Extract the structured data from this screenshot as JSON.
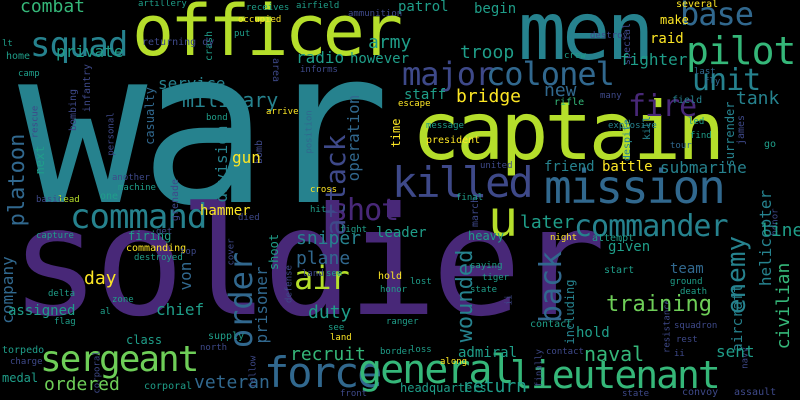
{
  "palette": {
    "background": "#000000",
    "purple": "#482878",
    "indigo": "#3e4989",
    "blue": "#31688e",
    "teal": "#26828e",
    "green_teal": "#1f9e89",
    "green": "#35b779",
    "light_green": "#6ece58",
    "lime": "#b5de2b",
    "yellow": "#fde725"
  },
  "words": [
    {
      "text": "war",
      "color": "#26828e"
    },
    {
      "text": "soldier",
      "color": "#482878"
    },
    {
      "text": "men",
      "color": "#26828e"
    },
    {
      "text": "officer",
      "color": "#b5de2b"
    },
    {
      "text": "captain",
      "color": "#b5de2b"
    },
    {
      "text": "mission",
      "color": "#31688e"
    },
    {
      "text": "killed",
      "color": "#3e4989"
    },
    {
      "text": "command",
      "color": "#26828e"
    },
    {
      "text": "commander",
      "color": "#26828e"
    },
    {
      "text": "force",
      "color": "#31688e"
    },
    {
      "text": "general",
      "color": "#35b779"
    },
    {
      "text": "lieutenant",
      "color": "#35b779"
    },
    {
      "text": "sergeant",
      "color": "#6ece58"
    },
    {
      "text": "squad",
      "color": "#26828e"
    },
    {
      "text": "major",
      "color": "#3e4989"
    },
    {
      "text": "pilot",
      "color": "#35b779"
    },
    {
      "text": "base",
      "color": "#31688e"
    },
    {
      "text": "unit",
      "color": "#26828e"
    },
    {
      "text": "colonel",
      "color": "#31688e"
    },
    {
      "text": "fire",
      "color": "#482878"
    },
    {
      "text": "attack",
      "color": "#3e4989"
    },
    {
      "text": "order",
      "color": "#31688e"
    },
    {
      "text": "shot",
      "color": "#482878"
    },
    {
      "text": "air",
      "color": "#b5de2b"
    },
    {
      "text": "u",
      "color": "#b5de2b"
    },
    {
      "text": "back",
      "color": "#31688e"
    },
    {
      "text": "enemy",
      "color": "#26828e"
    },
    {
      "text": "wounded",
      "color": "#26828e"
    },
    {
      "text": "platoon",
      "color": "#31688e"
    },
    {
      "text": "military",
      "color": "#26828e"
    },
    {
      "text": "army",
      "color": "#1f9e89"
    },
    {
      "text": "troop",
      "color": "#1f9e89"
    },
    {
      "text": "radio",
      "color": "#1f9e89"
    },
    {
      "text": "however",
      "color": "#1f9e89"
    },
    {
      "text": "division",
      "color": "#26828e"
    },
    {
      "text": "operation",
      "color": "#31688e"
    },
    {
      "text": "bridge",
      "color": "#fde725"
    },
    {
      "text": "tank",
      "color": "#26828e"
    },
    {
      "text": "staff",
      "color": "#1f9e89"
    },
    {
      "text": "fighter",
      "color": "#1f9e89"
    },
    {
      "text": "new",
      "color": "#31688e"
    },
    {
      "text": "sniper",
      "color": "#26828e"
    },
    {
      "text": "plane",
      "color": "#31688e"
    },
    {
      "text": "later",
      "color": "#1f9e89"
    },
    {
      "text": "leader",
      "color": "#1f9e89"
    },
    {
      "text": "line",
      "color": "#1f9e89"
    },
    {
      "text": "training",
      "color": "#6ece58"
    },
    {
      "text": "prisoner",
      "color": "#31688e"
    },
    {
      "text": "duty",
      "color": "#1f9e89"
    },
    {
      "text": "recruit",
      "color": "#35b779"
    },
    {
      "text": "return",
      "color": "#1f9e89"
    },
    {
      "text": "veteran",
      "color": "#31688e"
    },
    {
      "text": "naval",
      "color": "#35b779"
    },
    {
      "text": "sent",
      "color": "#1f9e89"
    },
    {
      "text": "civilian",
      "color": "#35b779"
    },
    {
      "text": "admiral",
      "color": "#1f9e89"
    },
    {
      "text": "ordered",
      "color": "#6ece58"
    },
    {
      "text": "company",
      "color": "#31688e"
    },
    {
      "text": "day",
      "color": "#fde725"
    },
    {
      "text": "von",
      "color": "#31688e"
    },
    {
      "text": "chief",
      "color": "#1f9e89"
    },
    {
      "text": "assigned",
      "color": "#1f9e89"
    },
    {
      "text": "private",
      "color": "#1f9e89"
    },
    {
      "text": "service",
      "color": "#26828e"
    },
    {
      "text": "combat",
      "color": "#35b779"
    },
    {
      "text": "hammer",
      "color": "#fde725"
    },
    {
      "text": "gun",
      "color": "#fde725"
    },
    {
      "text": "battle",
      "color": "#fde725"
    },
    {
      "text": "friend",
      "color": "#26828e"
    },
    {
      "text": "submarine",
      "color": "#26828e"
    },
    {
      "text": "time",
      "color": "#fde725"
    },
    {
      "text": "helicopter",
      "color": "#26828e"
    },
    {
      "text": "given",
      "color": "#1f9e89"
    },
    {
      "text": "including",
      "color": "#26828e"
    },
    {
      "text": "aircraft",
      "color": "#26828e"
    },
    {
      "text": "team",
      "color": "#31688e"
    },
    {
      "text": "patrol",
      "color": "#1f9e89"
    },
    {
      "text": "begin",
      "color": "#1f9e89"
    },
    {
      "text": "raid",
      "color": "#fde725"
    },
    {
      "text": "make",
      "color": "#fde725"
    },
    {
      "text": "destroy",
      "color": "#3e4989"
    },
    {
      "text": "several",
      "color": "#3e4989"
    },
    {
      "text": "special",
      "color": "#fde725"
    },
    {
      "text": "crew",
      "color": "#1f9e89"
    },
    {
      "text": "rifle",
      "color": "#35b779"
    },
    {
      "text": "field",
      "color": "#26828e"
    },
    {
      "text": "many",
      "color": "#3e4989"
    },
    {
      "text": "last",
      "color": "#31688e"
    },
    {
      "text": "fly",
      "color": "#31688e"
    },
    {
      "text": "led",
      "color": "#1f9e89"
    },
    {
      "text": "find",
      "color": "#1f9e89"
    },
    {
      "text": "tour",
      "color": "#31688e"
    },
    {
      "text": "go",
      "color": "#1f9e89"
    },
    {
      "text": "explosive",
      "color": "#26828e"
    },
    {
      "text": "surrender",
      "color": "#3e4989"
    },
    {
      "text": "james",
      "color": "#26828e"
    },
    {
      "text": "president",
      "color": "#26828e"
    },
    {
      "text": "despite",
      "color": "#26828e"
    },
    {
      "text": "kill",
      "color": "#fde725"
    },
    {
      "text": "message",
      "color": "#1f9e89"
    },
    {
      "text": "arrive",
      "color": "#fde725"
    },
    {
      "text": "following",
      "color": "#31688e"
    },
    {
      "text": "bond",
      "color": "#1f9e89"
    },
    {
      "text": "position",
      "color": "#31688e"
    },
    {
      "text": "experience",
      "color": "#3e4989"
    },
    {
      "text": "casualty",
      "color": "#3e4989"
    },
    {
      "text": "bombing",
      "color": "#3e4989"
    },
    {
      "text": "infantry",
      "color": "#1f9e89"
    },
    {
      "text": "personal",
      "color": "#3e4989"
    },
    {
      "text": "next",
      "color": "#1f9e89"
    },
    {
      "text": "rescue",
      "color": "#1f9e89"
    },
    {
      "text": "camp",
      "color": "#1f9e89"
    },
    {
      "text": "lt",
      "color": "#3e4989"
    },
    {
      "text": "home",
      "color": "#1f9e89"
    },
    {
      "text": "returning dy",
      "color": "#3e4989"
    },
    {
      "text": "crash",
      "color": "#1f9e89"
    },
    {
      "text": "area",
      "color": "#fde725"
    },
    {
      "text": "put",
      "color": "#1f9e89"
    },
    {
      "text": "occupied",
      "color": "#1f9e89"
    },
    {
      "text": "receives",
      "color": "#1f9e89"
    },
    {
      "text": "artillery",
      "color": "#3e4989"
    },
    {
      "text": "airfield",
      "color": "#3e4989"
    },
    {
      "text": "ammunition",
      "color": "#fde725"
    },
    {
      "text": "informs",
      "color": "#b5de2b"
    },
    {
      "text": "escape",
      "color": "#1f9e89"
    },
    {
      "text": "lead",
      "color": "#3e4989"
    },
    {
      "text": "one",
      "color": "#3e4989"
    },
    {
      "text": "basic",
      "color": "#1f9e89"
    },
    {
      "text": "another",
      "color": "#1f9e89"
    },
    {
      "text": "machine",
      "color": "#1f9e89"
    },
    {
      "text": "capture",
      "color": "#fde725"
    },
    {
      "text": "firing",
      "color": "#1f9e89"
    },
    {
      "text": "commanding",
      "color": "#3e4989"
    },
    {
      "text": "destroyed",
      "color": "#3e4989"
    },
    {
      "text": "grenade",
      "color": "#3e4989"
    },
    {
      "text": "cover",
      "color": "#3e4989"
    },
    {
      "text": "get",
      "color": "#1f9e89"
    },
    {
      "text": "died",
      "color": "#1f9e89"
    },
    {
      "text": "hit",
      "color": "#fde725"
    },
    {
      "text": "fight",
      "color": "#3e4989"
    },
    {
      "text": "bomb",
      "color": "#1f9e89"
    },
    {
      "text": "cross",
      "color": "#3e4989"
    },
    {
      "text": "march",
      "color": "#3e4989"
    },
    {
      "text": "final",
      "color": "#1f9e89"
    },
    {
      "text": "united",
      "color": "#fde725"
    },
    {
      "text": "heavy",
      "color": "#1f9e89"
    },
    {
      "text": "night",
      "color": "#1f9e89"
    },
    {
      "text": "attempt",
      "color": "#1f9e89"
    },
    {
      "text": "saying",
      "color": "#1f9e89"
    },
    {
      "text": "start",
      "color": "#1f9e89"
    },
    {
      "text": "ground",
      "color": "#3e4989"
    },
    {
      "text": "death",
      "color": "#3e4989"
    },
    {
      "text": "also",
      "color": "#3e4989"
    },
    {
      "text": "squadron",
      "color": "#3e4989"
    },
    {
      "text": "rest",
      "color": "#3e4989"
    },
    {
      "text": "battalion",
      "color": "#3e4989"
    },
    {
      "text": "second",
      "color": "#3e4989"
    },
    {
      "text": "resistance",
      "color": "#3e4989"
    },
    {
      "text": "first",
      "color": "#1f9e89"
    },
    {
      "text": "world",
      "color": "#3e4989"
    },
    {
      "text": "navy",
      "color": "#fde725"
    },
    {
      "text": "honor",
      "color": "#1f9e89"
    },
    {
      "text": "assault",
      "color": "#1f9e89"
    },
    {
      "text": "convoy",
      "color": "#1f9e89"
    },
    {
      "text": "state",
      "color": "#1f9e89"
    },
    {
      "text": "headquarters",
      "color": "#3e4989"
    },
    {
      "text": "front",
      "color": "#1f9e89"
    },
    {
      "text": "hold",
      "color": "#1f9e89"
    },
    {
      "text": "ii",
      "color": "#3e4989"
    },
    {
      "text": "contact",
      "color": "#3e4989"
    },
    {
      "text": "lost",
      "color": "#3e4989"
    },
    {
      "text": "tiger",
      "color": "#fde725"
    },
    {
      "text": "finally",
      "color": "#1f9e89"
    },
    {
      "text": "along",
      "color": "#1f9e89"
    },
    {
      "text": "loss",
      "color": "#1f9e89"
    },
    {
      "text": "border",
      "color": "#fde725"
    },
    {
      "text": "ranger",
      "color": "#1f9e89"
    },
    {
      "text": "land",
      "color": "#3e4989"
    },
    {
      "text": "see",
      "color": "#1f9e89"
    },
    {
      "text": "defense",
      "color": "#3e4989"
    },
    {
      "text": "shoot",
      "color": "#1f9e89"
    },
    {
      "text": "top",
      "color": "#3e4989"
    },
    {
      "text": "fellow",
      "color": "#3e4989"
    },
    {
      "text": "supply",
      "color": "#1f9e89"
    },
    {
      "text": "north",
      "color": "#3e4989"
    },
    {
      "text": "class",
      "color": "#1f9e89"
    },
    {
      "text": "corporal",
      "color": "#1f9e89"
    },
    {
      "text": "torpedo",
      "color": "#3e4989"
    },
    {
      "text": "charge",
      "color": "#1f9e89"
    },
    {
      "text": "medal",
      "color": "#3e4989"
    },
    {
      "text": "al",
      "color": "#1f9e89"
    },
    {
      "text": "flag",
      "color": "#1f9e89"
    },
    {
      "text": "zone",
      "color": "#1f9e89"
    },
    {
      "text": "delta",
      "color": "#1f9e89"
    },
    {
      "text": "group",
      "color": "#1f9e89"
    }
  ]
}
